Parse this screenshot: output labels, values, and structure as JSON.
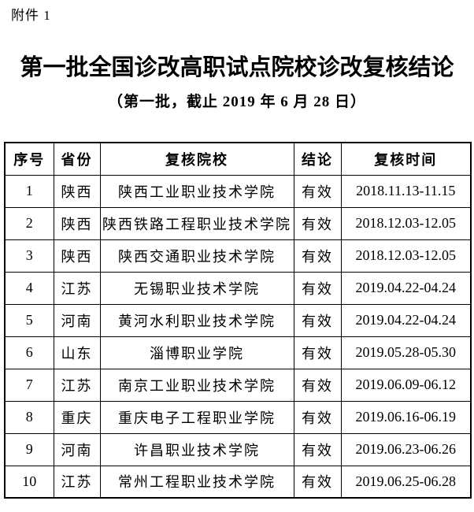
{
  "page": {
    "attachment_label": "附件 1",
    "title": "第一批全国诊改高职试点院校诊改复核结论",
    "subtitle": "（第一批，截止 2019 年 6 月 28 日）"
  },
  "table": {
    "columns": [
      "序号",
      "省份",
      "复核院校",
      "结论",
      "复核时间"
    ],
    "rows": [
      [
        "1",
        "陕西",
        "陕西工业职业技术学院",
        "有效",
        "2018.11.13-11.15"
      ],
      [
        "2",
        "陕西",
        "陕西铁路工程职业技术学院",
        "有效",
        "2018.12.03-12.05"
      ],
      [
        "3",
        "陕西",
        "陕西交通职业技术学院",
        "有效",
        "2018.12.03-12.05"
      ],
      [
        "4",
        "江苏",
        "无锡职业技术学院",
        "有效",
        "2019.04.22-04.24"
      ],
      [
        "5",
        "河南",
        "黄河水利职业技术学院",
        "有效",
        "2019.04.22-04.24"
      ],
      [
        "6",
        "山东",
        "淄博职业学院",
        "有效",
        "2019.05.28-05.30"
      ],
      [
        "7",
        "江苏",
        "南京工业职业技术学院",
        "有效",
        "2019.06.09-06.12"
      ],
      [
        "8",
        "重庆",
        "重庆电子工程职业学院",
        "有效",
        "2019.06.16-06.19"
      ],
      [
        "9",
        "河南",
        "许昌职业技术学院",
        "有效",
        "2019.06.23-06.26"
      ],
      [
        "10",
        "江苏",
        "常州工程职业技术学院",
        "有效",
        "2019.06.25-06.28"
      ]
    ]
  },
  "colors": {
    "text": "#000000",
    "border": "#000000",
    "background": "#ffffff"
  }
}
